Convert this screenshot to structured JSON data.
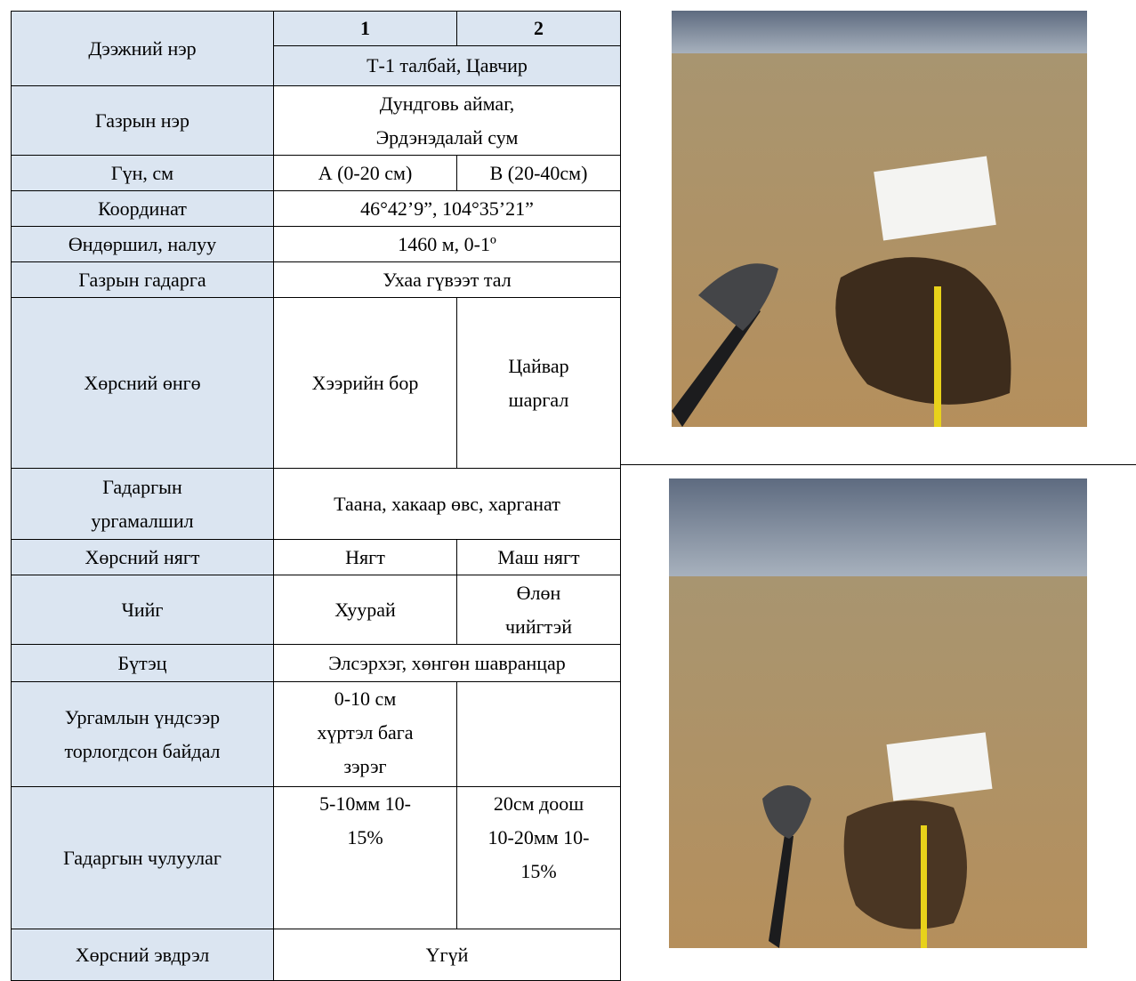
{
  "header": {
    "label": "Дээжний нэр",
    "columns": [
      "1",
      "2"
    ],
    "site": "Т-1 талбай, Цавчир"
  },
  "rows": [
    {
      "label": "Газрын нэр",
      "cells": [
        [
          "Дундговь аймаг,",
          "Эрдэнэдалай сум"
        ]
      ]
    },
    {
      "label": "Гүн, см",
      "cells": [
        "А (0-20 см)",
        "В (20-40см)"
      ]
    },
    {
      "label": "Координат",
      "cells": [
        "46°42’9”, 104°35’21”"
      ]
    },
    {
      "label": "Өндөршил, налуу",
      "cells": [
        "1460 м, 0-1º"
      ]
    },
    {
      "label": "Газрын гадарга",
      "cells": [
        "Ухаа гүвээт тал"
      ]
    },
    {
      "label": "Хөрсний өнгө",
      "cells": [
        "Хээрийн бор",
        [
          "Цайвар",
          "шаргал"
        ]
      ]
    },
    {
      "label": [
        "Гадаргын",
        "ургамалшил"
      ],
      "cells": [
        "Таана, хакаар өвс, харганат"
      ]
    },
    {
      "label": "Хөрсний нягт",
      "cells": [
        "Нягт",
        "Маш нягт"
      ]
    },
    {
      "label": "Чийг",
      "cells": [
        "Хуурай",
        [
          "Өлөн",
          "чийгтэй"
        ]
      ]
    },
    {
      "label": "Бүтэц",
      "cells": [
        "Элсэрхэг, хөнгөн шавранцар"
      ]
    },
    {
      "label": [
        "Ургамлын үндсээр",
        "торлогдсон байдал"
      ],
      "cells": [
        [
          "0-10 см",
          "хүртэл бага",
          "зэрэг"
        ]
      ]
    },
    {
      "label": "Гадаргын чулуулаг",
      "cells": [
        [
          "5-10мм 10-",
          "15%"
        ],
        [
          "20см доош",
          "10-20мм 10-",
          "15%"
        ]
      ]
    },
    {
      "label": "Хөрсний эвдрэл",
      "cells": [
        "Үгүй"
      ]
    }
  ]
}
